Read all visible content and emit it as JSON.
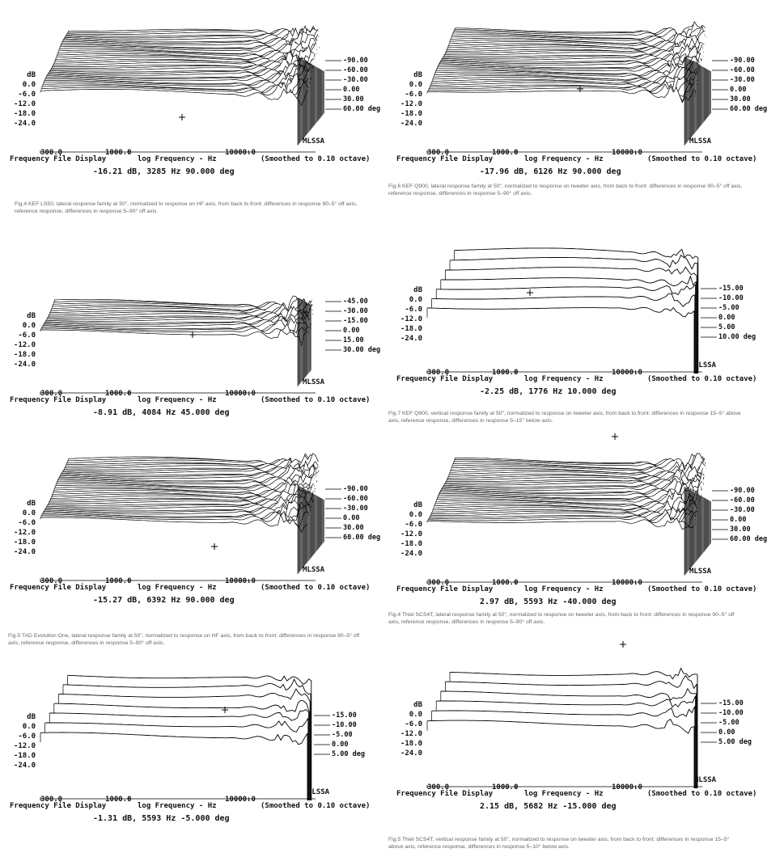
{
  "axis_common": {
    "ylabel": "dB",
    "xtick_left": "300.0",
    "xtick_mid": "1000.0",
    "xtick_right": "10000.0",
    "left_text": "Frequency File Display",
    "xlabel": "log Frequency - Hz",
    "smoothing": "(Smoothed to 0.10 octave)",
    "analyzer": "MLSSA",
    "yticks": [
      "dB",
      "0.0",
      "-6.0",
      "-12.0",
      "-18.0",
      "-24.0"
    ]
  },
  "panels": [
    {
      "id": "p1",
      "readout": "-16.21 dB, 3285 Hz  90.000 deg",
      "angles": [
        "-90.00",
        "-60.00",
        "-30.00",
        "0.00",
        "30.00",
        "60.00 deg"
      ],
      "caption": "Fig.4 KEF LS50, lateral response family at 50\", normalized to response on HF axis, from back to front: differences in response 90–5° off axis, reference response, differences in response 5–90° off axis.",
      "chart_data": {
        "type": "line",
        "title": "",
        "xlabel": "log Frequency - Hz",
        "ylabel": "dB",
        "x_scale": "log",
        "xlim": [
          300,
          40000
        ],
        "ylim": [
          -24,
          6
        ],
        "series_count": 37,
        "angle_range_deg": [
          -90,
          90
        ]
      }
    },
    {
      "id": "p2",
      "readout": "-17.96 dB, 6126 Hz  90.000 deg",
      "angles": [
        "-90.00",
        "-60.00",
        "-30.00",
        "0.00",
        "30.00",
        "60.00 deg"
      ],
      "caption": "Fig.6 KEF Q900, lateral response family at 50\", normalized to response on tweeter axis, from back to front: differences in response 90–5° off axis, reference response, differences in response 5–90° off axis.",
      "chart_data": {
        "type": "line",
        "title": "",
        "xlabel": "log Frequency - Hz",
        "ylabel": "dB",
        "x_scale": "log",
        "xlim": [
          300,
          40000
        ],
        "ylim": [
          -24,
          6
        ],
        "series_count": 37,
        "angle_range_deg": [
          -90,
          90
        ]
      }
    },
    {
      "id": "p3",
      "readout": "-8.91 dB, 4084 Hz  45.000 deg",
      "angles": [
        "-45.00",
        "-30.00",
        "-15.00",
        "0.00",
        "15.00",
        "30.00 deg"
      ],
      "caption": "",
      "chart_data": {
        "type": "line",
        "title": "",
        "xlabel": "log Frequency - Hz",
        "ylabel": "dB",
        "x_scale": "log",
        "xlim": [
          300,
          40000
        ],
        "ylim": [
          -24,
          6
        ],
        "series_count": 19,
        "angle_range_deg": [
          -45,
          45
        ]
      }
    },
    {
      "id": "p4",
      "readout": "-2.25 dB, 1776 Hz  10.000 deg",
      "angles": [
        "-15.00",
        "-10.00",
        "-5.00",
        "0.00",
        "5.00",
        "10.00 deg"
      ],
      "caption": "Fig.7 KEF Q900, vertical response family at 50\", normalized to response on tweeter axis, from back to front: differences in response 15–5° above axis, reference response, differences in response 5–15° below axis.",
      "chart_data": {
        "type": "line",
        "title": "",
        "xlabel": "log Frequency - Hz",
        "ylabel": "dB",
        "x_scale": "log",
        "xlim": [
          300,
          40000
        ],
        "ylim": [
          -24,
          6
        ],
        "series_count": 7,
        "angle_range_deg": [
          -15,
          15
        ]
      }
    },
    {
      "id": "p5",
      "readout": "-15.27 dB, 6392 Hz  90.000 deg",
      "angles": [
        "-90.00",
        "-60.00",
        "-30.00",
        "0.00",
        "30.00",
        "60.00 deg"
      ],
      "caption": "Fig.5 TAD Evolution One, lateral response family at 50\", normalized to response on HF axis, from back to front: differences in response 90–5° off axis, reference response, differences in response 5–90° off axis.",
      "chart_data": {
        "type": "line",
        "title": "",
        "xlabel": "log Frequency - Hz",
        "ylabel": "dB",
        "x_scale": "log",
        "xlim": [
          300,
          40000
        ],
        "ylim": [
          -24,
          6
        ],
        "series_count": 37,
        "angle_range_deg": [
          -90,
          90
        ]
      }
    },
    {
      "id": "p6",
      "readout": "2.97 dB, 5593 Hz  -40.000 deg",
      "angles": [
        "-90.00",
        "-60.00",
        "-30.00",
        "0.00",
        "30.00",
        "60.00 deg"
      ],
      "caption": "Fig.4 Thiel SCS4T, lateral response family at 50\", normalized to response on tweeter axis, from back to front: differences in response 90–5° off axis, reference response, differences in response 5–90° off axis.",
      "chart_data": {
        "type": "line",
        "title": "",
        "xlabel": "log Frequency - Hz",
        "ylabel": "dB",
        "x_scale": "log",
        "xlim": [
          300,
          40000
        ],
        "ylim": [
          -24,
          6
        ],
        "series_count": 37,
        "angle_range_deg": [
          -90,
          90
        ]
      }
    },
    {
      "id": "p7",
      "readout": "-1.31 dB, 5593 Hz  -5.000 deg",
      "angles": [
        "-15.00",
        "-10.00",
        "-5.00",
        "0.00",
        "5.00 deg"
      ],
      "caption": "",
      "chart_data": {
        "type": "line",
        "title": "",
        "xlabel": "log Frequency - Hz",
        "ylabel": "dB",
        "x_scale": "log",
        "xlim": [
          300,
          40000
        ],
        "ylim": [
          -24,
          6
        ],
        "series_count": 7,
        "angle_range_deg": [
          -15,
          15
        ]
      }
    },
    {
      "id": "p8",
      "readout": "2.15 dB, 5682 Hz  -15.000 deg",
      "angles": [
        "-15.00",
        "-10.00",
        "-5.00",
        "0.00",
        "5.00 deg"
      ],
      "caption": "Fig.5 Thiel SCS4T, vertical response family at 50\", normalized to response on tweeter axis, from back to front: differences in response 15–5° above axis, reference response, differences in response 5–10° below axis.",
      "chart_data": {
        "type": "line",
        "title": "",
        "xlabel": "log Frequency - Hz",
        "ylabel": "dB",
        "x_scale": "log",
        "xlim": [
          300,
          40000
        ],
        "ylim": [
          -24,
          6
        ],
        "series_count": 6,
        "angle_range_deg": [
          -15,
          10
        ]
      }
    }
  ]
}
